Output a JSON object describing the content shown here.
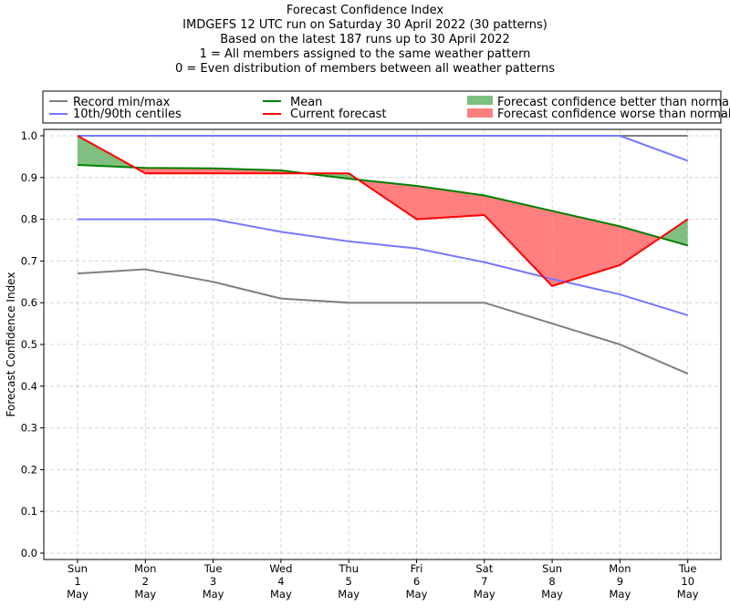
{
  "title_lines": [
    "Forecast Confidence Index",
    "IMDGEFS 12 UTC run on Saturday 30 April 2022 (30 patterns)",
    "Based on the latest 187 runs up to 30 April 2022",
    "1 = All members assigned to the same weather pattern",
    "0 = Even distribution of members between all weather patterns"
  ],
  "legend": {
    "record": "Record min/max",
    "centiles": "10th/90th centiles",
    "mean": "Mean",
    "current": "Current forecast",
    "better": "Forecast confidence better than normal",
    "worse": "Forecast confidence worse than normal"
  },
  "colors": {
    "record": "#7f7f7f",
    "centiles": "#7777ff",
    "mean": "#008000",
    "current": "#ff0000",
    "better": "#7fbf7f",
    "worse": "#ff7f7f"
  },
  "chart_data": {
    "type": "line",
    "ylabel": "Forecast Confidence Index",
    "ylim": [
      0,
      1.0
    ],
    "yticks": [
      "0.0",
      "0.1",
      "0.2",
      "0.3",
      "0.4",
      "0.5",
      "0.6",
      "0.7",
      "0.8",
      "0.9",
      "1.0"
    ],
    "grid": true,
    "legend_position": "top",
    "categories": [
      [
        "Sun",
        "1",
        "May"
      ],
      [
        "Mon",
        "2",
        "May"
      ],
      [
        "Tue",
        "3",
        "May"
      ],
      [
        "Wed",
        "4",
        "May"
      ],
      [
        "Thu",
        "5",
        "May"
      ],
      [
        "Fri",
        "6",
        "May"
      ],
      [
        "Sat",
        "7",
        "May"
      ],
      [
        "Sun",
        "8",
        "May"
      ],
      [
        "Mon",
        "9",
        "May"
      ],
      [
        "Tue",
        "10",
        "May"
      ]
    ],
    "series": [
      {
        "key": "record_max",
        "values": [
          1.0,
          1.0,
          1.0,
          1.0,
          1.0,
          1.0,
          1.0,
          1.0,
          1.0,
          1.0
        ]
      },
      {
        "key": "record_min",
        "values": [
          0.67,
          0.68,
          0.65,
          0.61,
          0.6,
          0.6,
          0.6,
          0.55,
          0.5,
          0.43
        ]
      },
      {
        "key": "p90",
        "values": [
          1.0,
          1.0,
          1.0,
          1.0,
          1.0,
          1.0,
          1.0,
          1.0,
          1.0,
          0.94
        ]
      },
      {
        "key": "p10",
        "values": [
          0.8,
          0.8,
          0.8,
          0.77,
          0.747,
          0.73,
          0.697,
          0.657,
          0.62,
          0.57
        ]
      },
      {
        "key": "mean",
        "values": [
          0.93,
          0.923,
          0.922,
          0.917,
          0.897,
          0.88,
          0.857,
          0.82,
          0.783,
          0.737
        ]
      },
      {
        "key": "current",
        "values": [
          1.0,
          0.91,
          0.91,
          0.91,
          0.91,
          0.8,
          0.81,
          0.64,
          0.69,
          0.8
        ]
      }
    ]
  }
}
